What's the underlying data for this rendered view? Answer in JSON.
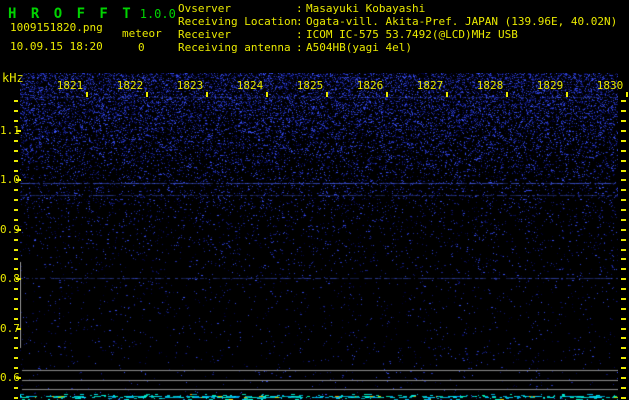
{
  "header": {
    "title_letters": "H R O F F T",
    "version": "1.0.0",
    "filename": "1009151820.png",
    "mode_label": "meteor",
    "meteor_count": "0",
    "datetime": "10.09.15 18:20",
    "info_rows": [
      {
        "label": "Ovserver",
        "colon": ":",
        "value": "Masayuki Kobayashi"
      },
      {
        "label": "Receiving Location",
        "colon": ":",
        "value": "Ogata-vill. Akita-Pref. JAPAN (139.96E, 40.02N)"
      },
      {
        "label": "Receiver",
        "colon": ":",
        "value": "ICOM IC-575 53.7492(@LCD)MHz USB"
      },
      {
        "label": "Receiving antenna",
        "colon": ":",
        "value": "A504HB(yagi 4el)"
      }
    ]
  },
  "chart_data": {
    "type": "heatmap",
    "title": "HROFFT radio meteor echo spectrogram (10-minute waterfall, no echoes detected)",
    "x_axis": {
      "unit": "time (HHMM)",
      "ticks": [
        "1821",
        "1822",
        "1823",
        "1824",
        "1825",
        "1826",
        "1827",
        "1828",
        "1829",
        "1830"
      ]
    },
    "y_axis": {
      "unit": "kHz",
      "major_ticks": [
        "1.1",
        "1.0",
        "0.9",
        "0.8",
        "0.7",
        "0.6"
      ],
      "major_tick_values": [
        1.1,
        1.0,
        0.9,
        0.8,
        0.7,
        0.6
      ],
      "minor_step_khz": 0.02,
      "range_khz": [
        0.56,
        1.16
      ]
    },
    "signal_lines": [
      {
        "khz": 1.168,
        "strength": 0.45,
        "color": "blue-dashed"
      },
      {
        "khz": 0.995,
        "strength": 0.85,
        "color": "blue-dashed"
      },
      {
        "khz": 0.97,
        "strength": 0.55,
        "color": "blue-dashed"
      },
      {
        "khz": 0.802,
        "strength": 0.65,
        "color": "blue-dashed"
      },
      {
        "khz": 0.616,
        "strength": 0.35,
        "color": "blue-dashed"
      }
    ],
    "gray_lines_khz": [
      0.616,
      0.596,
      0.578
    ],
    "vertical_marker": {
      "at_plot_left_edge": true,
      "from_khz": 0.835,
      "to_khz": 0.661
    },
    "bottom_band": {
      "description": "bright cyan dashed band with sparse yellow pixels at lower edge",
      "khz": 0.565
    },
    "noise": {
      "description": "blue speckle noise, dense near top (above 1.05 kHz) fading to near-black below 0.9 kHz",
      "density_profile": [
        [
          0,
          0.34
        ],
        [
          25,
          0.3
        ],
        [
          50,
          0.25
        ],
        [
          70,
          0.19
        ],
        [
          90,
          0.14
        ],
        [
          110,
          0.1
        ],
        [
          130,
          0.07
        ],
        [
          160,
          0.048
        ],
        [
          190,
          0.03
        ],
        [
          230,
          0.02
        ],
        [
          327,
          0.012
        ]
      ]
    },
    "colors": {
      "background": "#000000",
      "axis_text": "#e9e900",
      "title_green": "#00d400",
      "noise_blue": "#3344dd",
      "gray_line": "#8a8a8a",
      "cyan_band": "#00dcdc"
    }
  }
}
